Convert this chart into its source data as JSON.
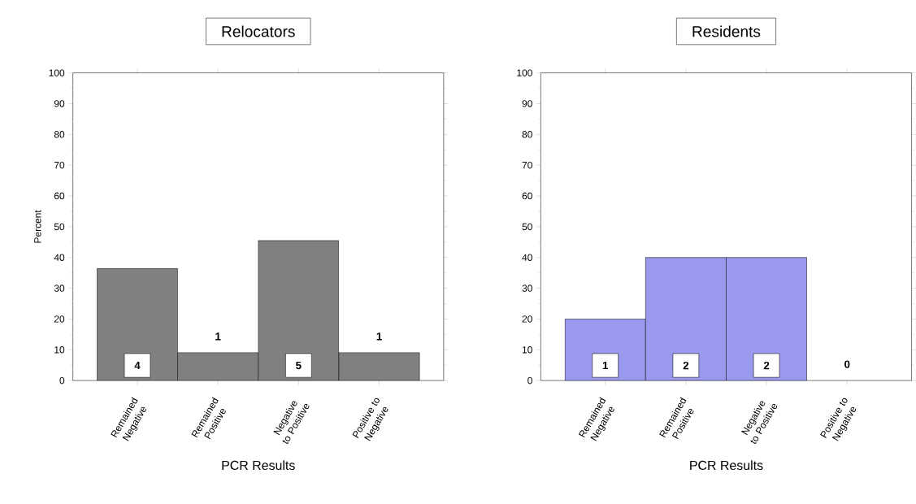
{
  "chart_data": [
    {
      "type": "bar",
      "title": "Relocators",
      "xlabel": "PCR Results",
      "ylabel": "Percent",
      "categories": [
        "Remained Negative",
        "Remained Positive",
        "Negative to Positive",
        "Positive to Negative"
      ],
      "values": [
        36.4,
        9.1,
        45.5,
        9.1
      ],
      "color": "#808080",
      "annotations": [
        "4",
        "1",
        "5",
        "1"
      ],
      "ylim": [
        0,
        100
      ],
      "yticks": [
        0,
        10,
        20,
        30,
        40,
        50,
        60,
        70,
        80,
        90,
        100
      ],
      "grid": false
    },
    {
      "type": "bar",
      "title": "Residents",
      "xlabel": "PCR Results",
      "categories": [
        "Remained Negative",
        "Remained Positive",
        "Negative to Positive",
        "Positive to Negative"
      ],
      "values": [
        20,
        40,
        40,
        0
      ],
      "color": "#9999ee",
      "annotations": [
        "1",
        "2",
        "2",
        "0"
      ],
      "ylim": [
        0,
        100
      ],
      "yticks": [
        0,
        10,
        20,
        30,
        40,
        50,
        60,
        70,
        80,
        90,
        100
      ],
      "grid": false
    }
  ]
}
